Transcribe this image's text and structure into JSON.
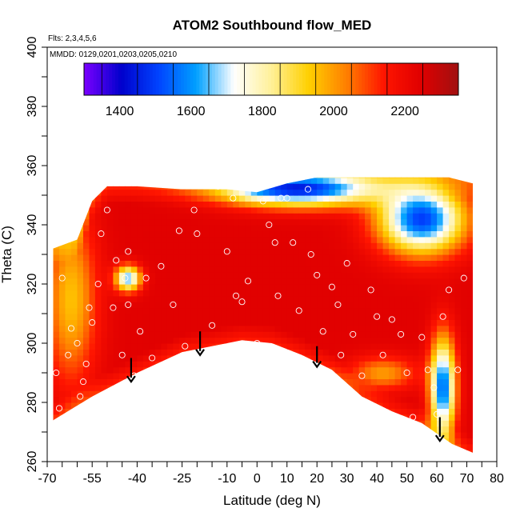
{
  "chart_data": {
    "type": "heatmap",
    "title": "ATOM2 Southbound flow_MED",
    "flights_label": "Flts: 2,3,4,5,6",
    "dates_label": "MMDD: 0129,0201,0203,0205,0210",
    "xlabel": "Latitude (deg N)",
    "ylabel": "Theta (C)",
    "xlim": [
      -70,
      80
    ],
    "ylim": [
      260,
      400
    ],
    "x_ticks": [
      -70,
      -55,
      -40,
      -25,
      -10,
      0,
      10,
      20,
      30,
      40,
      50,
      60,
      70,
      80
    ],
    "y_ticks": [
      260,
      280,
      300,
      320,
      340,
      360,
      380,
      400
    ],
    "colorbar": {
      "range": [
        1300,
        2350
      ],
      "ticks": [
        1400,
        1600,
        1800,
        2000,
        2200
      ],
      "colors": [
        "#7a00ff",
        "#0000cc",
        "#0044ff",
        "#00a0ff",
        "#ffffff",
        "#fff099",
        "#ffd000",
        "#ff8000",
        "#ff1500",
        "#e00000",
        "#a01010"
      ]
    },
    "field": {
      "base": 2240,
      "features": [
        {
          "lat": -43,
          "theta": 322,
          "value": 1650,
          "spread_lat": 3,
          "spread_theta": 3
        },
        {
          "lat": 15,
          "theta": 352,
          "value": 1500,
          "spread_lat": 18,
          "spread_theta": 4
        },
        {
          "lat": 55,
          "theta": 342,
          "value": 1500,
          "spread_lat": 10,
          "spread_theta": 8
        },
        {
          "lat": 62,
          "theta": 285,
          "value": 1550,
          "spread_lat": 3,
          "spread_theta": 12
        },
        {
          "lat": -62,
          "theta": 315,
          "value": 1950,
          "spread_lat": 6,
          "spread_theta": 20
        },
        {
          "lat": 42,
          "theta": 290,
          "value": 2000,
          "spread_lat": 8,
          "spread_theta": 4
        }
      ]
    },
    "boundary": {
      "bottom": [
        [
          -68,
          274
        ],
        [
          -55,
          282
        ],
        [
          -40,
          290
        ],
        [
          -25,
          297
        ],
        [
          -10,
          300
        ],
        [
          -5,
          301
        ],
        [
          5,
          300
        ],
        [
          15,
          296
        ],
        [
          25,
          291
        ],
        [
          35,
          282
        ],
        [
          45,
          277
        ],
        [
          55,
          273
        ],
        [
          65,
          266
        ],
        [
          72,
          263
        ]
      ],
      "top": [
        [
          -68,
          332
        ],
        [
          -60,
          335
        ],
        [
          -55,
          348
        ],
        [
          -50,
          353
        ],
        [
          -40,
          353
        ],
        [
          -25,
          352
        ],
        [
          -10,
          352
        ],
        [
          0,
          351
        ],
        [
          10,
          354
        ],
        [
          20,
          356
        ],
        [
          30,
          356
        ],
        [
          40,
          356
        ],
        [
          55,
          356
        ],
        [
          64,
          356
        ],
        [
          72,
          354
        ]
      ]
    },
    "observations": [
      [
        -67,
        290
      ],
      [
        -66,
        278
      ],
      [
        -63,
        296
      ],
      [
        -60,
        300
      ],
      [
        -58,
        287
      ],
      [
        -57,
        293
      ],
      [
        -56,
        312
      ],
      [
        -55,
        307
      ],
      [
        -53,
        320
      ],
      [
        -52,
        337
      ],
      [
        -50,
        345
      ],
      [
        -48,
        312
      ],
      [
        -45,
        296
      ],
      [
        -44,
        322
      ],
      [
        -43,
        331
      ],
      [
        -43,
        313
      ],
      [
        -41,
        289
      ],
      [
        -39,
        304
      ],
      [
        -35,
        295
      ],
      [
        -32,
        326
      ],
      [
        -28,
        313
      ],
      [
        -26,
        338
      ],
      [
        -24,
        299
      ],
      [
        -21,
        345
      ],
      [
        -20,
        337
      ],
      [
        -17,
        296
      ],
      [
        -13,
        353
      ],
      [
        -8,
        349
      ],
      [
        -7,
        316
      ],
      [
        -5,
        314
      ],
      [
        -3,
        321
      ],
      [
        0,
        300
      ],
      [
        2,
        348
      ],
      [
        4,
        340
      ],
      [
        6,
        334
      ],
      [
        8,
        349
      ],
      [
        10,
        349
      ],
      [
        12,
        334
      ],
      [
        14,
        311
      ],
      [
        17,
        352
      ],
      [
        18,
        330
      ],
      [
        20,
        323
      ],
      [
        22,
        304
      ],
      [
        25,
        319
      ],
      [
        27,
        313
      ],
      [
        30,
        327
      ],
      [
        32,
        303
      ],
      [
        35,
        289
      ],
      [
        38,
        318
      ],
      [
        40,
        309
      ],
      [
        42,
        296
      ],
      [
        45,
        308
      ],
      [
        48,
        303
      ],
      [
        50,
        290
      ],
      [
        52,
        275
      ],
      [
        55,
        302
      ],
      [
        57,
        291
      ],
      [
        60,
        276
      ],
      [
        62,
        309
      ],
      [
        64,
        318
      ],
      [
        67,
        291
      ],
      [
        69,
        322
      ],
      [
        -65,
        322
      ],
      [
        -62,
        305
      ],
      [
        -59,
        282
      ],
      [
        -47,
        328
      ],
      [
        -37,
        322
      ],
      [
        -15,
        306
      ],
      [
        -10,
        331
      ],
      [
        7,
        316
      ],
      [
        28,
        296
      ],
      [
        43,
        275
      ],
      [
        59,
        285
      ]
    ],
    "descent_arrows": [
      {
        "lat": -42,
        "theta_top": 295,
        "theta_bottom": 287
      },
      {
        "lat": -19,
        "theta_top": 304,
        "theta_bottom": 296
      },
      {
        "lat": 20,
        "theta_top": 299,
        "theta_bottom": 292
      },
      {
        "lat": 61,
        "theta_top": 275,
        "theta_bottom": 267
      }
    ]
  }
}
